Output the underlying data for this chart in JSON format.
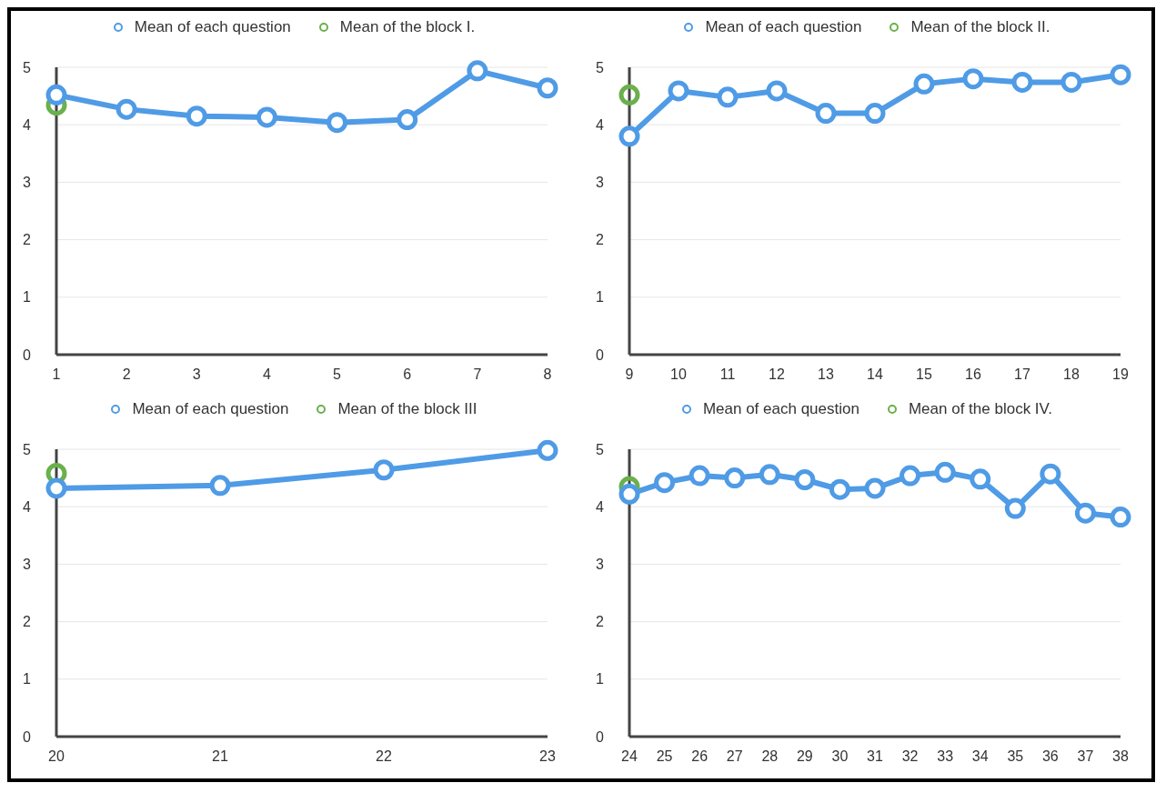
{
  "chart_data": [
    {
      "type": "line",
      "x": [
        1,
        2,
        3,
        4,
        5,
        6,
        7,
        8
      ],
      "xlim": [
        1,
        8
      ],
      "xticks": [
        1,
        2,
        3,
        4,
        5,
        6,
        7,
        8
      ],
      "ylim": [
        0,
        5
      ],
      "yticks": [
        0,
        1,
        2,
        3,
        4,
        5
      ],
      "grid": "y",
      "legend": "top",
      "marker": "circle",
      "series": [
        {
          "name": "Mean of each question",
          "color": "#4f9be6",
          "values": [
            4.52,
            4.27,
            4.15,
            4.13,
            4.04,
            4.09,
            4.94,
            4.64
          ]
        },
        {
          "name": "Mean of the block I.",
          "type": "scatter",
          "color": "#6ab04c",
          "x": [
            1
          ],
          "values": [
            4.34
          ]
        }
      ]
    },
    {
      "type": "line",
      "x": [
        9,
        10,
        11,
        12,
        13,
        14,
        15,
        16,
        17,
        18,
        19
      ],
      "xlim": [
        9,
        19
      ],
      "xticks": [
        9,
        10,
        11,
        12,
        13,
        14,
        15,
        16,
        17,
        18,
        19
      ],
      "ylim": [
        0,
        5
      ],
      "yticks": [
        0,
        1,
        2,
        3,
        4,
        5
      ],
      "grid": "y",
      "legend": "top",
      "marker": "circle",
      "series": [
        {
          "name": "Mean of each question",
          "color": "#4f9be6",
          "values": [
            3.8,
            4.59,
            4.48,
            4.59,
            4.2,
            4.2,
            4.71,
            4.8,
            4.74,
            4.74,
            4.87
          ]
        },
        {
          "name": "Mean of the block II.",
          "type": "scatter",
          "color": "#6ab04c",
          "x": [
            9
          ],
          "values": [
            4.52
          ]
        }
      ]
    },
    {
      "type": "line",
      "x": [
        20,
        21,
        22,
        23
      ],
      "xlim": [
        20,
        23
      ],
      "xticks": [
        20,
        21,
        22,
        23
      ],
      "ylim": [
        0,
        5
      ],
      "yticks": [
        0,
        1,
        2,
        3,
        4,
        5
      ],
      "grid": "y",
      "legend": "top",
      "marker": "circle",
      "series": [
        {
          "name": "Mean of each question",
          "color": "#4f9be6",
          "values": [
            4.32,
            4.37,
            4.64,
            4.98
          ]
        },
        {
          "name": "Mean of the block III",
          "type": "scatter",
          "color": "#6ab04c",
          "x": [
            20
          ],
          "values": [
            4.58
          ]
        }
      ]
    },
    {
      "type": "line",
      "x": [
        24,
        25,
        26,
        27,
        28,
        29,
        30,
        31,
        32,
        33,
        34,
        35,
        36,
        37,
        38
      ],
      "xlim": [
        24,
        38
      ],
      "xticks": [
        24,
        25,
        26,
        27,
        28,
        29,
        30,
        31,
        32,
        33,
        34,
        35,
        36,
        37,
        38
      ],
      "ylim": [
        0,
        5
      ],
      "yticks": [
        0,
        1,
        2,
        3,
        4,
        5
      ],
      "grid": "y",
      "legend": "top",
      "marker": "circle",
      "series": [
        {
          "name": "Mean of each question",
          "color": "#4f9be6",
          "values": [
            4.22,
            4.42,
            4.54,
            4.5,
            4.56,
            4.47,
            4.3,
            4.32,
            4.54,
            4.6,
            4.48,
            3.97,
            4.57,
            3.89,
            3.82
          ]
        },
        {
          "name": "Mean of the block IV.",
          "type": "scatter",
          "color": "#6ab04c",
          "x": [
            24
          ],
          "values": [
            4.35
          ]
        }
      ]
    }
  ]
}
